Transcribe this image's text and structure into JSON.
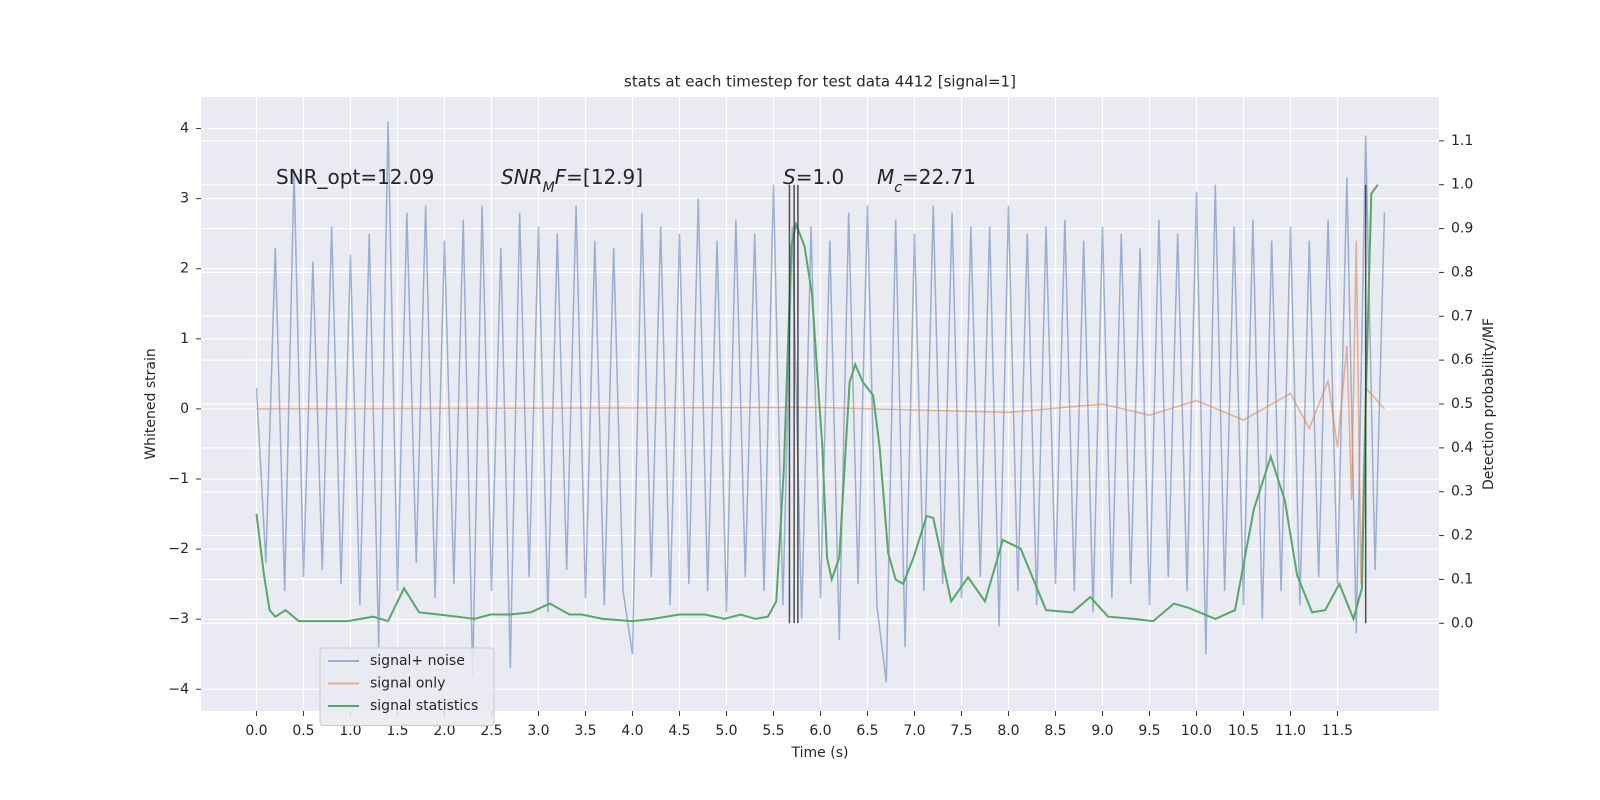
{
  "chart_data": {
    "type": "line",
    "title": "stats at each timestep for test data 4412 [signal=1]",
    "x_label": "Time (s)",
    "y_label": "Whitened strain",
    "y2_label": "Detection probability/MF",
    "grid": true,
    "legend": "lower left",
    "xlim": [
      -0.59,
      12.58
    ],
    "ylim": [
      -4.31,
      4.45
    ],
    "y2lim": [
      -0.2,
      1.2
    ],
    "xticks": [
      {
        "value": 0,
        "label": "0.0"
      },
      0.5,
      {
        "value": 1,
        "label": "1.0"
      },
      1.5,
      {
        "value": 2,
        "label": "2.0"
      },
      2.5,
      {
        "value": 3,
        "label": "3.0"
      },
      3.5,
      {
        "value": 4,
        "label": "4.0"
      },
      4.5,
      {
        "value": 5,
        "label": "5.0"
      },
      5.5,
      {
        "value": 6,
        "label": "6.0"
      },
      6.5,
      {
        "value": 7,
        "label": "7.0"
      },
      7.5,
      {
        "value": 8,
        "label": "8.0"
      },
      8.5,
      {
        "value": 9,
        "label": "9.0"
      },
      9.5,
      {
        "value": 10,
        "label": "10.0"
      },
      10.5,
      {
        "value": 11,
        "label": "11.0"
      },
      11.5
    ],
    "yticks": [
      {
        "value": -4,
        "label": "−4"
      },
      {
        "value": -3,
        "label": "−3"
      },
      {
        "value": -2,
        "label": "−2"
      },
      {
        "value": -1,
        "label": "−1"
      },
      0,
      1,
      2,
      3,
      4
    ],
    "y2ticks": [
      {
        "value": 0,
        "label": "0.0"
      },
      0.1,
      0.2,
      0.3,
      0.4,
      0.5,
      0.6,
      0.7,
      0.8,
      0.9,
      {
        "value": 1,
        "label": "1.0"
      },
      1.1
    ],
    "series": [
      {
        "name": "signal+ noise",
        "color": "#4c72b0",
        "alpha": 0.5,
        "x": [
          0.0,
          0.1,
          0.2,
          0.3,
          0.4,
          0.5,
          0.6,
          0.7,
          0.8,
          0.9,
          1.0,
          1.1,
          1.2,
          1.3,
          1.4,
          1.5,
          1.6,
          1.7,
          1.8,
          1.9,
          2.0,
          2.1,
          2.2,
          2.3,
          2.4,
          2.5,
          2.6,
          2.7,
          2.8,
          2.9,
          3.0,
          3.1,
          3.2,
          3.3,
          3.4,
          3.5,
          3.6,
          3.7,
          3.8,
          3.9,
          4.0,
          4.1,
          4.2,
          4.3,
          4.4,
          4.5,
          4.6,
          4.7,
          4.8,
          4.9,
          5.0,
          5.1,
          5.2,
          5.3,
          5.4,
          5.5,
          5.6,
          5.7,
          5.8,
          5.9,
          6.0,
          6.1,
          6.2,
          6.3,
          6.4,
          6.5,
          6.6,
          6.7,
          6.8,
          6.9,
          7.0,
          7.1,
          7.2,
          7.3,
          7.4,
          7.5,
          7.6,
          7.7,
          7.8,
          7.9,
          8.0,
          8.1,
          8.2,
          8.3,
          8.4,
          8.5,
          8.6,
          8.7,
          8.8,
          8.9,
          9.0,
          9.1,
          9.2,
          9.3,
          9.4,
          9.5,
          9.6,
          9.7,
          9.8,
          9.9,
          10.0,
          10.1,
          10.2,
          10.3,
          10.4,
          10.5,
          10.6,
          10.7,
          10.8,
          10.9,
          11.0,
          11.1,
          11.2,
          11.3,
          11.4,
          11.5,
          11.6,
          11.7,
          11.8,
          11.9,
          12.0
        ],
        "values": [
          0.3,
          -2.2,
          2.3,
          -2.6,
          3.4,
          -2.4,
          2.1,
          -2.3,
          2.6,
          -2.5,
          2.2,
          -2.8,
          2.5,
          -3.4,
          4.1,
          -2.6,
          2.8,
          -2.2,
          2.9,
          -2.7,
          2.4,
          -2.5,
          2.7,
          -3.8,
          2.9,
          -2.6,
          2.3,
          -3.7,
          2.8,
          -2.4,
          2.6,
          -2.9,
          2.5,
          -2.3,
          2.9,
          -2.7,
          2.4,
          -2.8,
          2.3,
          -2.6,
          -3.5,
          2.8,
          -2.4,
          2.6,
          -2.8,
          2.5,
          -2.5,
          3.0,
          -2.6,
          2.4,
          -2.9,
          2.7,
          -2.4,
          2.5,
          -2.6,
          3.2,
          -2.8,
          2.6,
          -3.0,
          2.6,
          -2.7,
          2.4,
          -3.3,
          2.8,
          -2.5,
          2.9,
          -2.8,
          -3.9,
          2.7,
          -3.4,
          2.5,
          -2.6,
          2.9,
          -2.5,
          2.8,
          -2.7,
          2.6,
          -2.4,
          2.6,
          -3.1,
          2.9,
          -2.6,
          2.5,
          -2.8,
          2.6,
          -2.5,
          2.7,
          -2.6,
          2.4,
          -2.9,
          2.6,
          -2.7,
          2.5,
          -2.5,
          2.3,
          -2.8,
          2.7,
          -2.4,
          2.5,
          -2.6,
          3.1,
          -3.5,
          3.2,
          -2.6,
          2.6,
          -2.8,
          2.7,
          -3.0,
          2.4,
          -2.6,
          2.6,
          -2.8,
          2.4,
          -2.4,
          2.7,
          -2.5,
          3.3,
          -3.2,
          3.9,
          -2.3,
          2.8
        ]
      },
      {
        "name": "signal only",
        "color": "#dd8452",
        "alpha": 0.6,
        "x": [
          0.0,
          6.0,
          8.0,
          9.0,
          9.5,
          10.0,
          10.5,
          11.0,
          11.2,
          11.4,
          11.5,
          11.6,
          11.65,
          11.7,
          11.75,
          11.8,
          12.0
        ],
        "values": [
          0,
          0.02,
          -0.05,
          0.07,
          -0.09,
          0.12,
          -0.16,
          0.22,
          -0.28,
          0.4,
          -0.55,
          0.9,
          -1.3,
          2.4,
          -2.5,
          0.3,
          0
        ]
      },
      {
        "name": "signal statistics",
        "color": "#55a868",
        "alpha": 1,
        "axis": "y2",
        "x": [
          0,
          0.08,
          0.14,
          0.2,
          0.31,
          0.45,
          0.97,
          1.24,
          1.4,
          1.57,
          1.73,
          1.94,
          2.32,
          2.49,
          2.7,
          2.92,
          3.12,
          3.33,
          3.46,
          3.68,
          4.0,
          4.22,
          4.5,
          4.77,
          4.98,
          5.15,
          5.31,
          5.44,
          5.53,
          5.61,
          5.69,
          5.74,
          5.83,
          5.91,
          6.02,
          6.07,
          6.12,
          6.2,
          6.31,
          6.37,
          6.45,
          6.56,
          6.63,
          6.72,
          6.8,
          6.88,
          6.99,
          7.13,
          7.2,
          7.39,
          7.57,
          7.75,
          7.94,
          8.13,
          8.4,
          8.68,
          8.87,
          9.06,
          9.33,
          9.54,
          9.76,
          9.92,
          10.2,
          10.41,
          10.61,
          10.79,
          10.94,
          11.07,
          11.23,
          11.37,
          11.52,
          11.67,
          11.76,
          11.8,
          11.86,
          11.93
        ],
        "values": [
          0.25,
          0.11,
          0.03,
          0.015,
          0.03,
          0.005,
          0.005,
          0.015,
          0.005,
          0.08,
          0.025,
          0.02,
          0.01,
          0.02,
          0.02,
          0.025,
          0.045,
          0.02,
          0.02,
          0.01,
          0.005,
          0.01,
          0.02,
          0.02,
          0.01,
          0.02,
          0.01,
          0.015,
          0.05,
          0.35,
          0.86,
          0.91,
          0.86,
          0.75,
          0.4,
          0.15,
          0.1,
          0.15,
          0.55,
          0.59,
          0.55,
          0.52,
          0.4,
          0.16,
          0.1,
          0.09,
          0.15,
          0.245,
          0.24,
          0.05,
          0.105,
          0.05,
          0.19,
          0.17,
          0.03,
          0.025,
          0.06,
          0.015,
          0.01,
          0.005,
          0.045,
          0.035,
          0.01,
          0.03,
          0.26,
          0.38,
          0.28,
          0.11,
          0.025,
          0.03,
          0.09,
          0.01,
          0.08,
          0.5,
          0.98,
          1.0
        ]
      }
    ],
    "vlines": [
      5.67,
      5.72,
      5.76,
      11.8
    ],
    "vline_span": [
      0,
      1.0
    ],
    "vline_color": "#333333",
    "annotations": [
      {
        "parts": [
          {
            "text": "SNR_opt=12.09"
          }
        ]
      },
      {
        "parts": [
          {
            "text": "SNR",
            "style": "italic"
          },
          {
            "text": "M",
            "style": "sub"
          },
          {
            "text": "F",
            "style": "italic"
          },
          {
            "text": "=[12.9]"
          }
        ]
      },
      {
        "parts": [
          {
            "text": "S",
            "style": "italic"
          },
          {
            "text": "=1.0"
          }
        ]
      },
      {
        "parts": [
          {
            "text": "M",
            "style": "italic"
          },
          {
            "text": "c",
            "style": "sub"
          },
          {
            "text": "=22.71"
          }
        ]
      }
    ]
  }
}
